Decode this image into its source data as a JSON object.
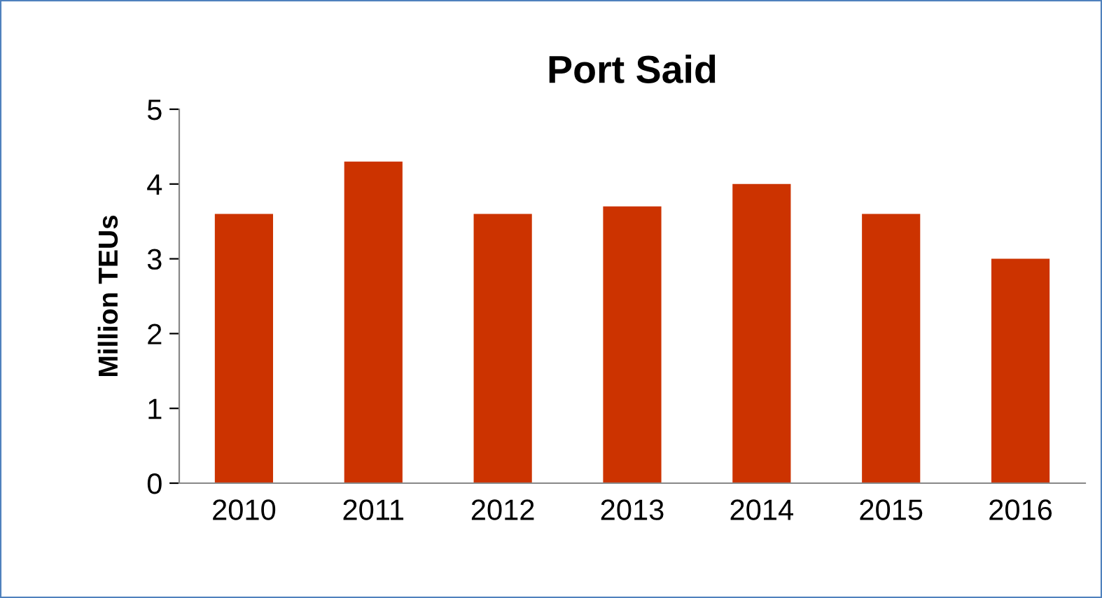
{
  "chart_data": {
    "type": "bar",
    "title": "Port Said",
    "ylabel": "Million TEUs",
    "categories": [
      "2010",
      "2011",
      "2012",
      "2013",
      "2014",
      "2015",
      "2016"
    ],
    "values": [
      3.6,
      4.3,
      3.6,
      3.7,
      4.0,
      3.6,
      3.0
    ],
    "color": "#cc3300",
    "ylim": [
      0,
      5
    ],
    "yticks": [
      0,
      1,
      2,
      3,
      4,
      5
    ],
    "grid": false,
    "legend": false
  }
}
